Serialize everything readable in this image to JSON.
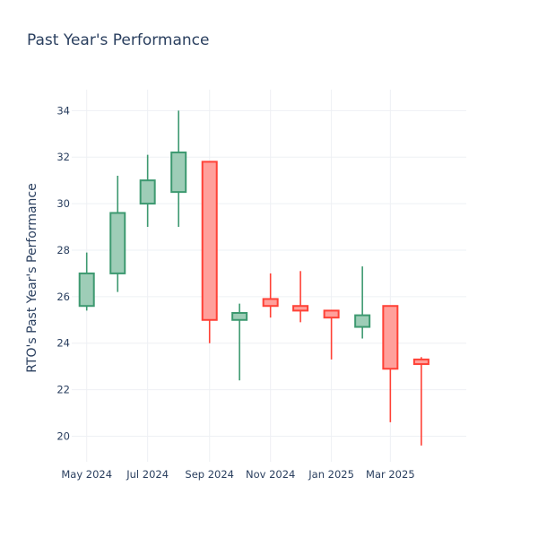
{
  "chart_data": {
    "type": "candlestick",
    "title": "Past Year's Performance",
    "ylabel": "RTO's Past Year's Performance",
    "xlabel": "",
    "ylim": [
      18.9,
      34.9
    ],
    "yticks": [
      20,
      22,
      24,
      26,
      28,
      30,
      32,
      34
    ],
    "xticks": [
      {
        "label": "May 2024",
        "date": "2024-05-01"
      },
      {
        "label": "Jul 2024",
        "date": "2024-07-01"
      },
      {
        "label": "Sep 2024",
        "date": "2024-09-01"
      },
      {
        "label": "Nov 2024",
        "date": "2024-11-01"
      },
      {
        "label": "Jan 2025",
        "date": "2025-01-01"
      },
      {
        "label": "Mar 2025",
        "date": "2025-03-01"
      }
    ],
    "xrange": [
      "2024-04-16",
      "2025-05-16"
    ],
    "increasing_color": "#3d9970",
    "increasing_fill": "#9ecdb7",
    "decreasing_color": "#ff4136",
    "decreasing_fill": "#ffa09b",
    "candles": [
      {
        "date": "2024-05-01",
        "open": 25.6,
        "high": 27.9,
        "low": 25.4,
        "close": 27.0
      },
      {
        "date": "2024-06-01",
        "open": 27.0,
        "high": 31.2,
        "low": 26.2,
        "close": 29.6
      },
      {
        "date": "2024-07-01",
        "open": 30.0,
        "high": 32.1,
        "low": 29.0,
        "close": 31.0
      },
      {
        "date": "2024-08-01",
        "open": 30.5,
        "high": 34.0,
        "low": 29.0,
        "close": 32.2
      },
      {
        "date": "2024-09-01",
        "open": 31.8,
        "high": 31.8,
        "low": 24.0,
        "close": 25.0
      },
      {
        "date": "2024-10-01",
        "open": 25.0,
        "high": 25.7,
        "low": 22.4,
        "close": 25.3
      },
      {
        "date": "2024-11-01",
        "open": 25.9,
        "high": 27.0,
        "low": 25.1,
        "close": 25.6
      },
      {
        "date": "2024-12-01",
        "open": 25.6,
        "high": 27.1,
        "low": 24.9,
        "close": 25.4
      },
      {
        "date": "2025-01-01",
        "open": 25.4,
        "high": 25.4,
        "low": 23.3,
        "close": 25.1
      },
      {
        "date": "2025-02-01",
        "open": 24.7,
        "high": 27.3,
        "low": 24.2,
        "close": 25.2
      },
      {
        "date": "2025-03-01",
        "open": 25.6,
        "high": 25.6,
        "low": 20.6,
        "close": 22.9
      },
      {
        "date": "2025-04-01",
        "open": 23.3,
        "high": 23.4,
        "low": 19.6,
        "close": 23.1
      }
    ]
  }
}
